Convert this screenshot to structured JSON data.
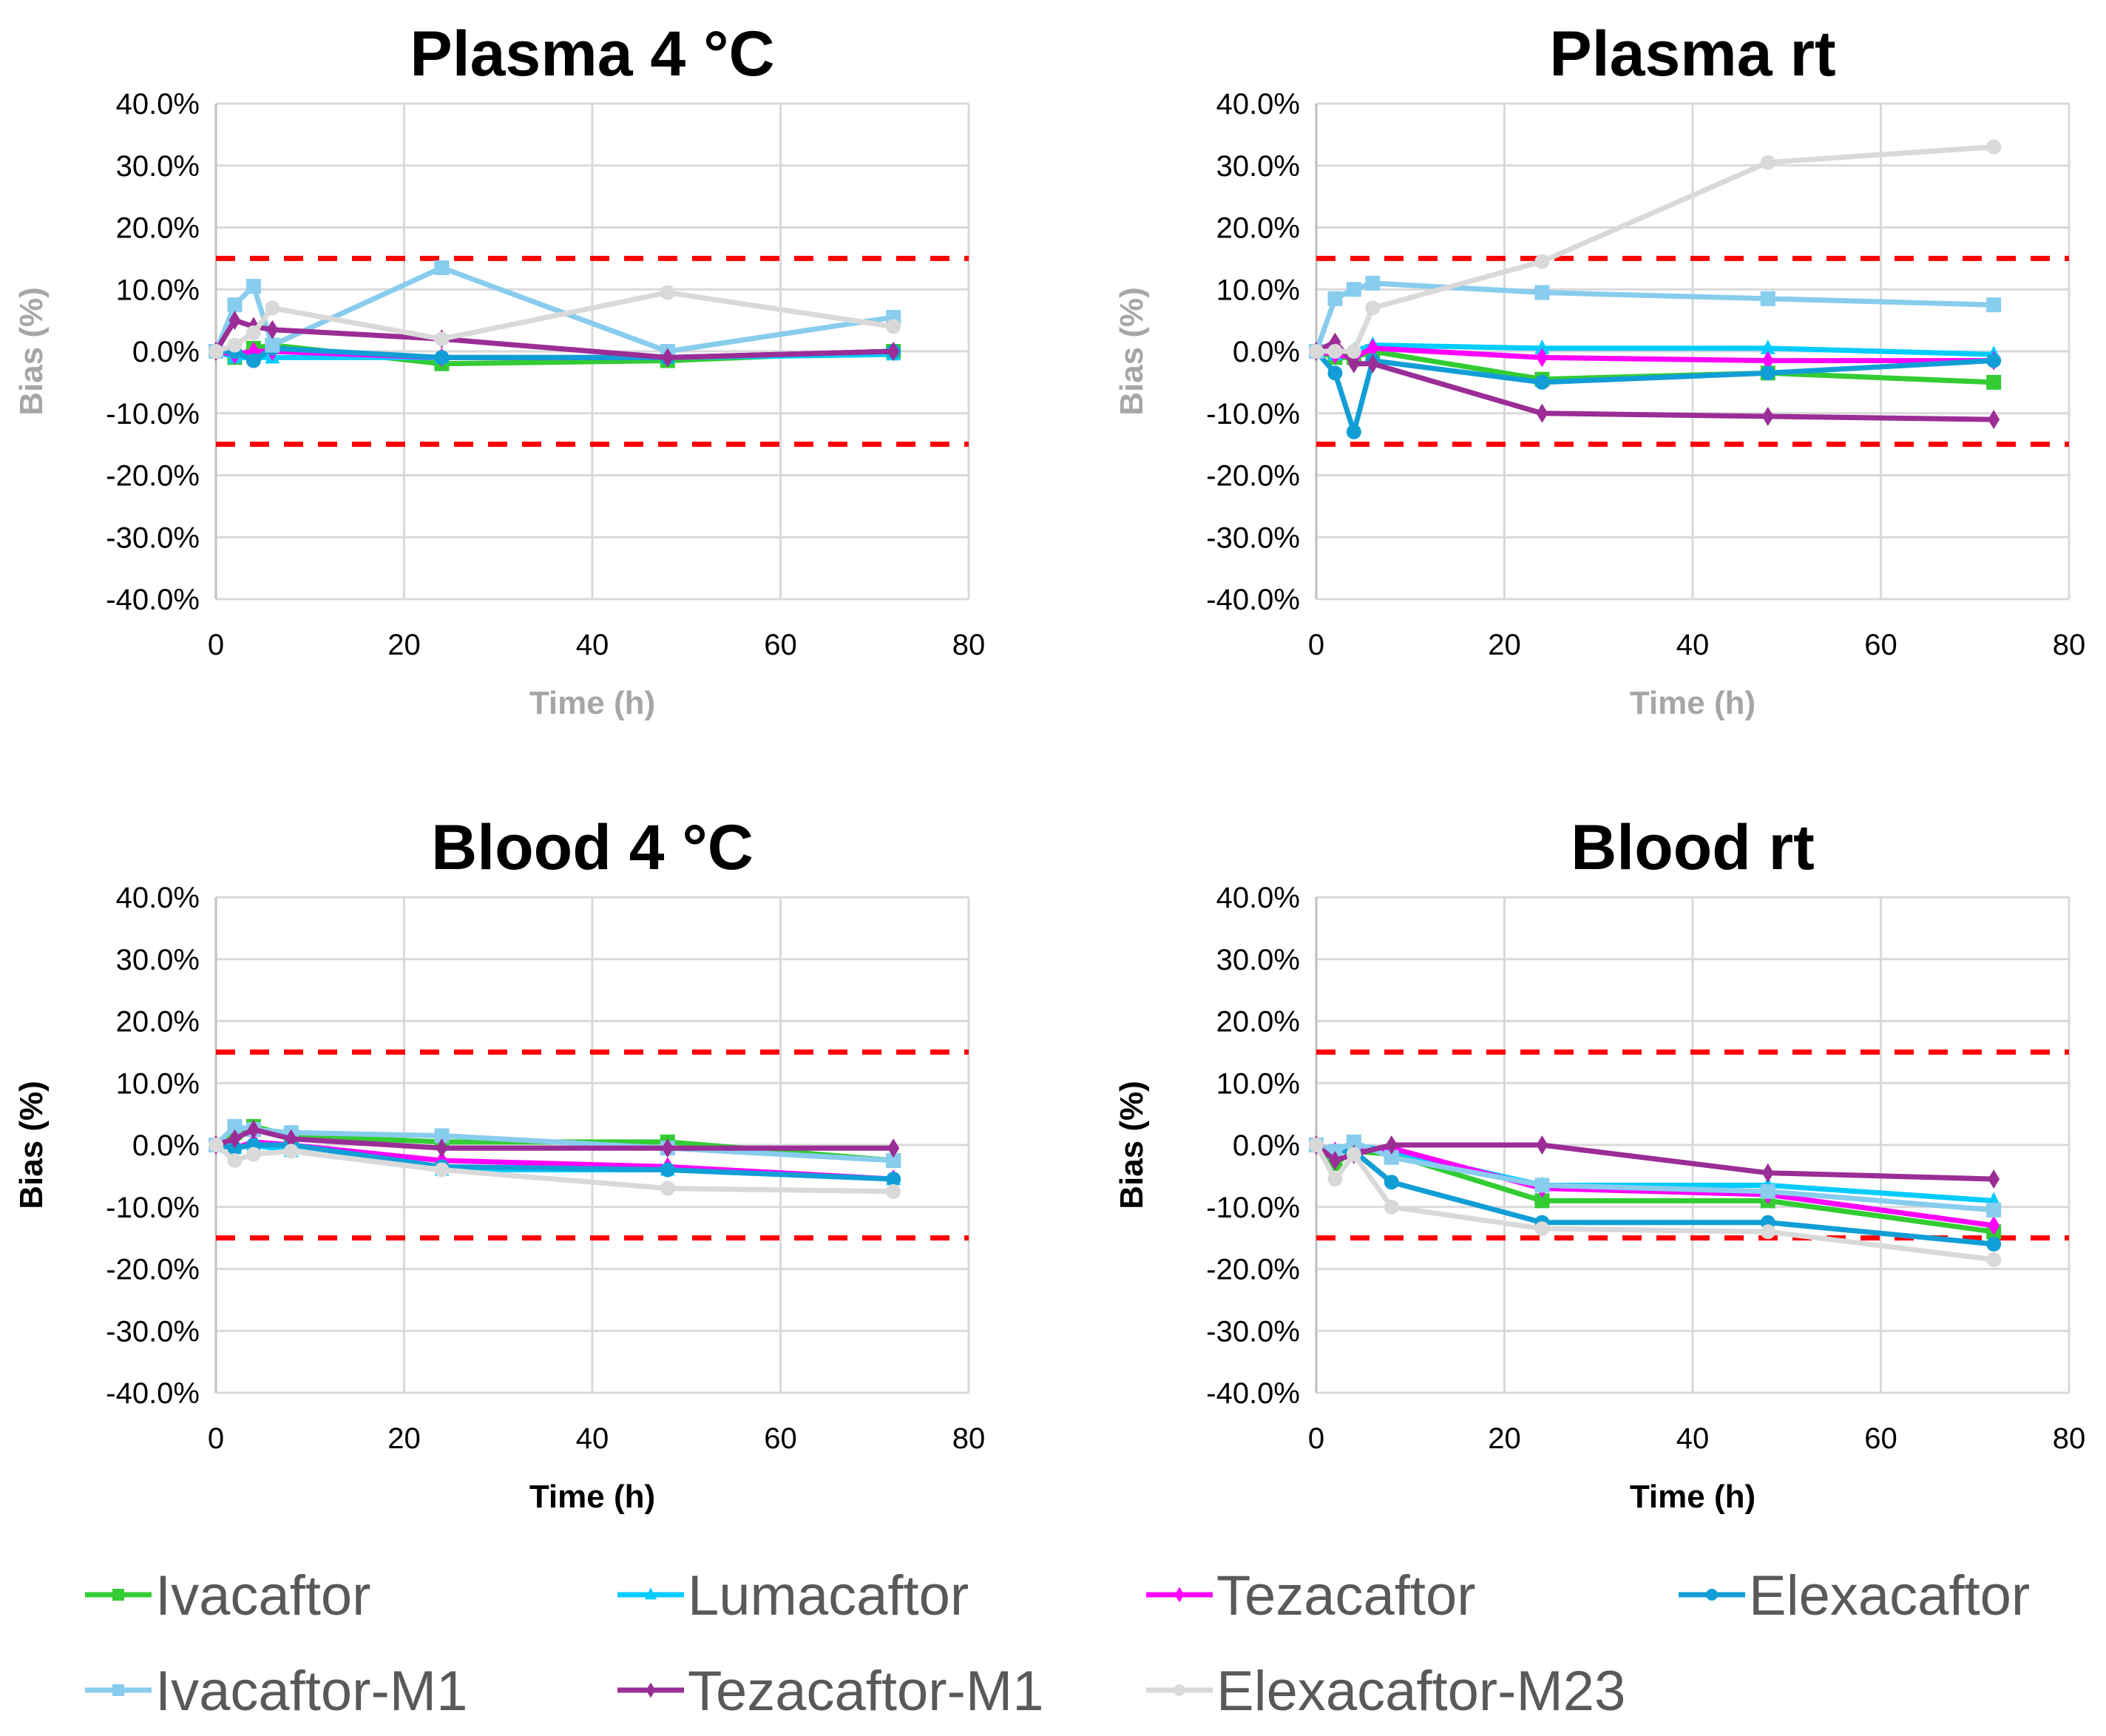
{
  "chart_data": [
    {
      "type": "line",
      "title": "Plasma 4 °C",
      "xlabel": "Time (h)",
      "ylabel": "Bias (%)",
      "axis_label_color": "#a6a6a6",
      "x": [
        0,
        2,
        4,
        6,
        24,
        48,
        72
      ],
      "xlim": [
        0,
        80
      ],
      "xticks": [
        0,
        20,
        40,
        60,
        80
      ],
      "ylim": [
        -40,
        40
      ],
      "yticks": [
        -40,
        -30,
        -20,
        -10,
        0,
        10,
        20,
        30,
        40
      ],
      "limits": [
        15,
        -15
      ],
      "grid": true,
      "series": [
        {
          "name": "Ivacaftor",
          "values": [
            0,
            -1,
            0.5,
            1,
            -2,
            -1.5,
            0
          ]
        },
        {
          "name": "Lumacaftor",
          "values": [
            0,
            -1,
            -1,
            -1,
            -1,
            -1,
            -0.5
          ]
        },
        {
          "name": "Tezacaftor",
          "values": [
            0,
            -0.5,
            0,
            0,
            -1,
            -1,
            0
          ]
        },
        {
          "name": "Elexacaftor",
          "values": [
            0,
            0,
            -1.5,
            0.5,
            -1,
            -1,
            0
          ]
        },
        {
          "name": "Ivacaftor-M1",
          "values": [
            0,
            7.5,
            10.5,
            1,
            13.5,
            0,
            5.5
          ]
        },
        {
          "name": "Tezacaftor-M1",
          "values": [
            0,
            5,
            4,
            3.5,
            2,
            -1,
            0
          ]
        },
        {
          "name": "Elexacaftor-M23",
          "values": [
            0,
            1,
            3,
            7,
            2,
            9.5,
            4
          ]
        }
      ]
    },
    {
      "type": "line",
      "title": "Plasma rt",
      "xlabel": "Time (h)",
      "ylabel": "Bias (%)",
      "axis_label_color": "#a6a6a6",
      "x": [
        0,
        2,
        4,
        6,
        24,
        48,
        72
      ],
      "xlim": [
        0,
        80
      ],
      "xticks": [
        0,
        20,
        40,
        60,
        80
      ],
      "ylim": [
        -40,
        40
      ],
      "yticks": [
        -40,
        -30,
        -20,
        -10,
        0,
        10,
        20,
        30,
        40
      ],
      "limits": [
        15,
        -15
      ],
      "grid": true,
      "series": [
        {
          "name": "Ivacaftor",
          "values": [
            0,
            -1,
            -1,
            0,
            -4.5,
            -3.5,
            -5
          ]
        },
        {
          "name": "Lumacaftor",
          "values": [
            0,
            -0.5,
            0,
            1,
            0.5,
            0.5,
            -0.5
          ]
        },
        {
          "name": "Tezacaftor",
          "values": [
            0,
            -0.5,
            -1,
            0.5,
            -1,
            -1.5,
            -1.5
          ]
        },
        {
          "name": "Elexacaftor",
          "values": [
            0,
            -3.5,
            -13,
            -1.5,
            -5,
            -3.5,
            -1.5
          ]
        },
        {
          "name": "Ivacaftor-M1",
          "values": [
            0,
            8.5,
            10,
            11,
            9.5,
            8.5,
            7.5
          ]
        },
        {
          "name": "Tezacaftor-M1",
          "values": [
            0,
            1.5,
            -2,
            -2,
            -10,
            -10.5,
            -11
          ]
        },
        {
          "name": "Elexacaftor-M23",
          "values": [
            0,
            0,
            0,
            7,
            14.5,
            30.5,
            33
          ]
        }
      ]
    },
    {
      "type": "line",
      "title": "Blood 4 °C",
      "xlabel": "Time (h)",
      "ylabel": "Bias (%)",
      "axis_label_color": "#000000",
      "x": [
        0,
        2,
        4,
        8,
        24,
        48,
        72
      ],
      "xlim": [
        0,
        80
      ],
      "xticks": [
        0,
        20,
        40,
        60,
        80
      ],
      "ylim": [
        -40,
        40
      ],
      "yticks": [
        -40,
        -30,
        -20,
        -10,
        0,
        10,
        20,
        30,
        40
      ],
      "limits": [
        15,
        -15
      ],
      "grid": true,
      "series": [
        {
          "name": "Ivacaftor",
          "values": [
            0,
            2,
            3,
            1.5,
            0.5,
            0.5,
            -2.5
          ]
        },
        {
          "name": "Lumacaftor",
          "values": [
            0,
            -0.5,
            0,
            -1,
            -4,
            -4,
            -5.5
          ]
        },
        {
          "name": "Tezacaftor",
          "values": [
            0,
            -0.5,
            0.5,
            0,
            -2.5,
            -3.5,
            -5.5
          ]
        },
        {
          "name": "Elexacaftor",
          "values": [
            0,
            -0.5,
            0,
            0,
            -3.5,
            -4,
            -5.5
          ]
        },
        {
          "name": "Ivacaftor-M1",
          "values": [
            0,
            3,
            2.5,
            2,
            1.5,
            -0.5,
            -2.5
          ]
        },
        {
          "name": "Tezacaftor-M1",
          "values": [
            0,
            1,
            2.5,
            1,
            -0.5,
            -0.5,
            -0.5
          ]
        },
        {
          "name": "Elexacaftor-M23",
          "values": [
            0,
            -2.5,
            -1.5,
            -1,
            -4,
            -7,
            -7.5
          ]
        }
      ]
    },
    {
      "type": "line",
      "title": "Blood rt",
      "xlabel": "Time (h)",
      "ylabel": "Bias (%)",
      "axis_label_color": "#000000",
      "x": [
        0,
        2,
        4,
        8,
        24,
        48,
        72
      ],
      "xlim": [
        0,
        80
      ],
      "xticks": [
        0,
        20,
        40,
        60,
        80
      ],
      "ylim": [
        -40,
        40
      ],
      "yticks": [
        -40,
        -30,
        -20,
        -10,
        0,
        10,
        20,
        30,
        40
      ],
      "limits": [
        15,
        -15
      ],
      "grid": true,
      "series": [
        {
          "name": "Ivacaftor",
          "values": [
            0,
            -3,
            -1,
            -1.5,
            -9,
            -9,
            -14
          ]
        },
        {
          "name": "Lumacaftor",
          "values": [
            0,
            -1,
            0,
            -1,
            -6.5,
            -6.5,
            -9
          ]
        },
        {
          "name": "Tezacaftor",
          "values": [
            0,
            -1,
            -1,
            -0.5,
            -7,
            -8,
            -13
          ]
        },
        {
          "name": "Elexacaftor",
          "values": [
            0,
            -1,
            -1,
            -6,
            -12.5,
            -12.5,
            -16
          ]
        },
        {
          "name": "Ivacaftor-M1",
          "values": [
            0,
            -1,
            0.5,
            -2,
            -6.5,
            -7.5,
            -10.5
          ]
        },
        {
          "name": "Tezacaftor-M1",
          "values": [
            0,
            -2.5,
            -1.5,
            0,
            0,
            -4.5,
            -5.5
          ]
        },
        {
          "name": "Elexacaftor-M23",
          "values": [
            0,
            -5.5,
            -1.5,
            -10,
            -13.5,
            -14,
            -18.5
          ]
        }
      ]
    }
  ],
  "legend": {
    "placement": "bottom",
    "items": [
      {
        "name": "Ivacaftor",
        "color": "#33cc33",
        "marker": "square"
      },
      {
        "name": "Lumacaftor",
        "color": "#00ccff",
        "marker": "triangle"
      },
      {
        "name": "Tezacaftor",
        "color": "#ff00ff",
        "marker": "diamond"
      },
      {
        "name": "Elexacaftor",
        "color": "#119ed6",
        "marker": "circle"
      },
      {
        "name": "Ivacaftor-M1",
        "color": "#88ccee",
        "marker": "square"
      },
      {
        "name": "Tezacaftor-M1",
        "color": "#9b2d96",
        "marker": "diamond"
      },
      {
        "name": "Elexacaftor-M23",
        "color": "#d9d9d9",
        "marker": "circle"
      }
    ]
  },
  "limit_line_color": "#ff0000"
}
